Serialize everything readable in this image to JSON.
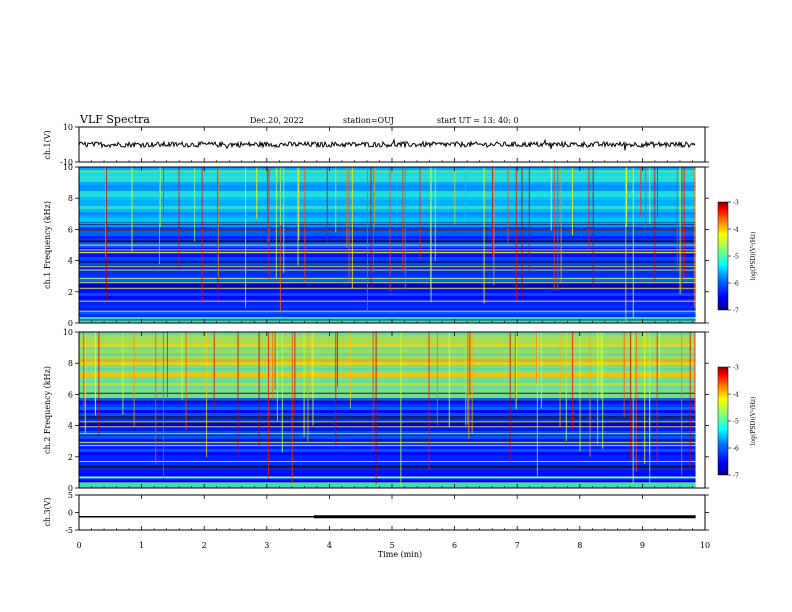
{
  "header": {
    "title": "VLF Spectra",
    "date": "Dec.20, 2022",
    "station": "station=OUJ",
    "start": "start  UT  =   13: 40: 0"
  },
  "colors": {
    "colormap": [
      "#00007f",
      "#0000ff",
      "#0080ff",
      "#00ffff",
      "#80ff80",
      "#ffff00",
      "#ff8000",
      "#ff0000",
      "#7f0000"
    ],
    "trace": "#000000"
  },
  "chart_data": [
    {
      "id": "ch1-waveform",
      "type": "line",
      "ylabel": "ch.1(V)",
      "ylim": [
        -10,
        10
      ],
      "yticks": [
        "10",
        "-10"
      ],
      "baseline": 0,
      "amplitude": 1.5
    },
    {
      "id": "ch1-spectrogram",
      "type": "heatmap",
      "ylabel": "ch.1 Frequency (kHz)",
      "ylim": [
        0,
        10
      ],
      "yticks": [
        "0",
        "2",
        "4",
        "6",
        "8",
        "10"
      ],
      "colorbar": {
        "label": "log(PSD)(V²/Hz)",
        "range": [
          -7,
          -3
        ],
        "ticks": [
          "-3",
          "-4",
          "-5",
          "-6",
          "-7"
        ]
      },
      "upper_band_kHz": [
        6.2,
        10
      ],
      "upper_band_level": -5.6
    },
    {
      "id": "ch2-spectrogram",
      "type": "heatmap",
      "ylabel": "ch.2 Frequency (kHz)",
      "ylim": [
        0,
        10
      ],
      "yticks": [
        "0",
        "2",
        "4",
        "6",
        "8",
        "10"
      ],
      "colorbar": {
        "label": "log(PSD)(V²/Hz)",
        "range": [
          -7,
          -3
        ],
        "ticks": [
          "-3",
          "-4",
          "-5",
          "-6",
          "-7"
        ]
      },
      "upper_band_kHz": [
        5.8,
        10
      ],
      "upper_band_level": -4.7
    },
    {
      "id": "ch3-waveform",
      "type": "line",
      "ylabel": "ch.3(V)",
      "ylim": [
        -5,
        5
      ],
      "yticks": [
        "5",
        "0",
        "-5"
      ],
      "x": [
        0,
        3.75,
        3.75,
        9.85
      ],
      "y": [
        -1.2,
        -1.2,
        -1.2,
        -1.2
      ],
      "note": "trace thickens after 3.75 min"
    }
  ],
  "xaxis": {
    "label": "Time  (min)",
    "range": [
      0,
      10
    ],
    "ticks": [
      "0",
      "1",
      "2",
      "3",
      "4",
      "5",
      "6",
      "7",
      "8",
      "9",
      "10"
    ],
    "data_end": 9.85
  }
}
